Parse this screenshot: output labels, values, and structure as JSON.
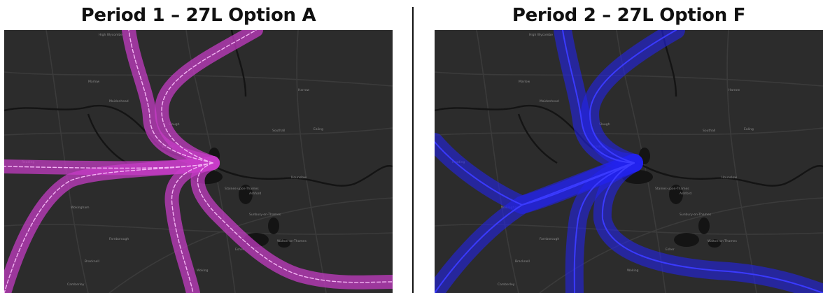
{
  "panels": [
    {
      "title": "Period 1 – 27L Option A",
      "route_color": "#c83cc8",
      "centerline_color": "#f4b6f4",
      "centerline_style": "dashed"
    },
    {
      "title": "Period 2 – 27L Option F",
      "route_color": "#2222ee",
      "centerline_color": "#3a3aff",
      "centerline_style": "solid"
    }
  ],
  "map": {
    "background_color": "#2c2c2c",
    "road_color": "#3b3b3b",
    "water_color": "#141414",
    "label_color": "#8a8a8a",
    "place_labels": [
      "High Wycombe",
      "Marlow",
      "Harrow",
      "Maidenhead",
      "Slough",
      "Windsor",
      "Southall",
      "Ealing",
      "Hounslow",
      "Staines-upon-Thames",
      "Ashford",
      "Sunbury-on-Thames",
      "Walton-on-Thames",
      "Woking",
      "Wokingham",
      "Bracknell",
      "Camberley",
      "Esher",
      "Farnborough",
      "Reading"
    ]
  }
}
